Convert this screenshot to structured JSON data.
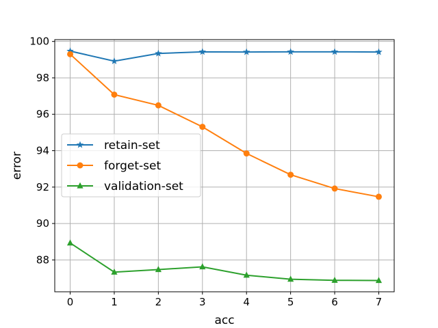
{
  "chart_data": {
    "type": "line",
    "xlabel": "acc",
    "ylabel": "error",
    "x": [
      0,
      1,
      2,
      3,
      4,
      5,
      6,
      7
    ],
    "xticks": [
      0,
      1,
      2,
      3,
      4,
      5,
      6,
      7
    ],
    "yticks": [
      88,
      90,
      92,
      94,
      96,
      98,
      100
    ],
    "xlim": [
      -0.35,
      7.35
    ],
    "ylim": [
      86.25,
      100.1
    ],
    "grid": true,
    "legend_position": "center-left",
    "series": [
      {
        "name": "retain-set",
        "color": "#1f77b4",
        "marker": "star",
        "values": [
          99.47,
          98.92,
          99.34,
          99.43,
          99.42,
          99.43,
          99.43,
          99.42
        ]
      },
      {
        "name": "forget-set",
        "color": "#ff7f0e",
        "marker": "circle",
        "values": [
          99.3,
          97.08,
          96.49,
          95.31,
          93.85,
          92.68,
          91.92,
          91.47
        ]
      },
      {
        "name": "validation-set",
        "color": "#2ca02c",
        "marker": "triangle",
        "values": [
          88.93,
          87.33,
          87.47,
          87.62,
          87.16,
          86.94,
          86.88,
          86.87
        ]
      }
    ]
  }
}
